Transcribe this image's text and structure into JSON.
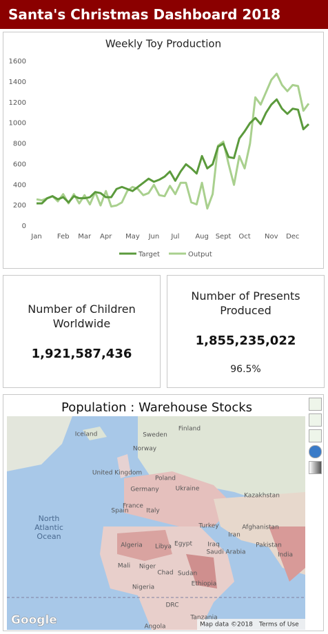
{
  "header": {
    "title": "Santa's Christmas Dashboard 2018"
  },
  "chart_data": {
    "type": "line",
    "title": "Weekly Toy Production",
    "categories": [
      "Jan",
      null,
      null,
      null,
      null,
      "Feb",
      null,
      null,
      null,
      "Mar",
      null,
      null,
      null,
      "Apr",
      null,
      null,
      null,
      null,
      "May",
      null,
      null,
      null,
      "Jun",
      null,
      null,
      null,
      "Jul",
      null,
      null,
      null,
      null,
      "Aug",
      null,
      null,
      null,
      "Sept",
      null,
      null,
      null,
      "Oct",
      null,
      null,
      null,
      null,
      "Nov",
      null,
      null,
      null,
      "Dec",
      null,
      null,
      null
    ],
    "series": [
      {
        "name": "Target",
        "color": "#5b9a3c",
        "values": [
          220,
          220,
          270,
          290,
          260,
          280,
          230,
          290,
          270,
          270,
          280,
          330,
          320,
          280,
          280,
          360,
          380,
          360,
          340,
          380,
          420,
          460,
          430,
          450,
          480,
          530,
          440,
          530,
          600,
          560,
          510,
          680,
          560,
          600,
          770,
          800,
          670,
          660,
          850,
          920,
          1000,
          1050,
          990,
          1100,
          1180,
          1230,
          1140,
          1090,
          1140,
          1130,
          940,
          990
        ]
      },
      {
        "name": "Output",
        "color": "#a9d08e",
        "values": [
          260,
          250,
          270,
          290,
          240,
          310,
          220,
          310,
          220,
          300,
          210,
          330,
          200,
          340,
          190,
          200,
          230,
          340,
          380,
          360,
          300,
          320,
          400,
          300,
          290,
          390,
          310,
          420,
          420,
          230,
          210,
          420,
          170,
          310,
          780,
          820,
          600,
          400,
          680,
          560,
          800,
          1250,
          1180,
          1300,
          1420,
          1480,
          1370,
          1310,
          1370,
          1360,
          1120,
          1190
        ]
      }
    ],
    "ylim": [
      0,
      1600
    ],
    "yticks": [
      0,
      200,
      400,
      600,
      800,
      1000,
      1200,
      1400,
      1600
    ],
    "grid": false,
    "legend": "bottom"
  },
  "cards": [
    {
      "title": "Number of Children Worldwide",
      "value": "1,921,587,436"
    },
    {
      "title": "Number of Presents Produced",
      "value": "1,855,235,022",
      "sub": "96.5%"
    }
  ],
  "map": {
    "title": "Population : Warehouse Stocks",
    "labels": [
      "Iceland",
      "Sweden",
      "Finland",
      "Norway",
      "United Kingdom",
      "Germany",
      "Poland",
      "Ukraine",
      "France",
      "Spain",
      "Italy",
      "Turkey",
      "Kazakhstan",
      "Iraq",
      "Iran",
      "Afghanistan",
      "Pakistan",
      "Saudi Arabia",
      "Egypt",
      "Libya",
      "Algeria",
      "Mali",
      "Niger",
      "Chad",
      "Sudan",
      "Nigeria",
      "Ethiopia",
      "India",
      "DRC",
      "Tanzania",
      "Angola",
      "North Atlantic Ocean"
    ],
    "logo": "Google",
    "attribution": "Map data ©2018",
    "terms": "Terms of Use"
  }
}
